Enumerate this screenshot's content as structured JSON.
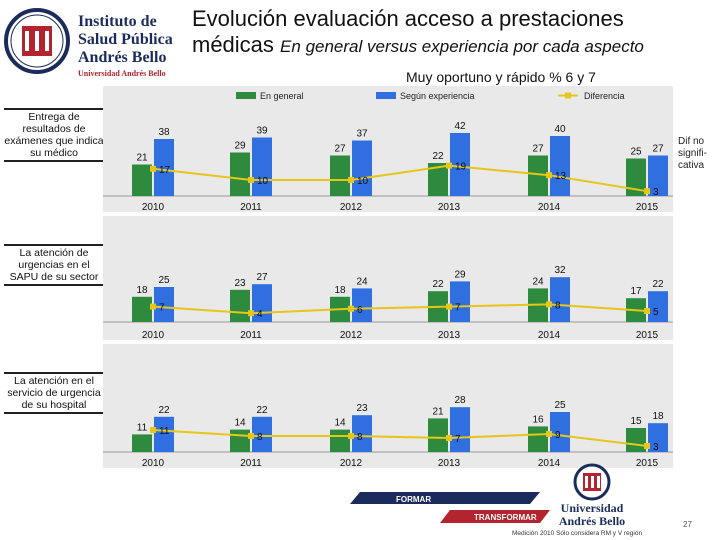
{
  "header": {
    "title_line1": "Evolución evaluación acceso a prestaciones",
    "title_line2_main": "médicas ",
    "title_line2_sub": "En general versus experiencia por cada aspecto",
    "subtitle": "Muy oportuno y rápido % 6 y 7"
  },
  "logo": {
    "line1": "Instituto de",
    "line2": "Salud Pública",
    "line3": "Andrés Bello",
    "line4": "Universidad Andrés Bello"
  },
  "legend": {
    "general": "En general",
    "experiencia": "Según experiencia",
    "diferencia": "Diferencia"
  },
  "colors": {
    "general": "#2e8b3e",
    "experiencia": "#2f6fe0",
    "diferencia": "#e6c619",
    "panel_bg": "#e9e9e9"
  },
  "dif_note": [
    "Dif no",
    "signifi-",
    "cativa"
  ],
  "chart_data": [
    {
      "type": "bar",
      "label": "Entrega de resultados de exámenes que indica su médico",
      "categories": [
        "2010",
        "2011",
        "2012",
        "2013",
        "2014",
        "2015"
      ],
      "series": [
        {
          "name": "En general",
          "values": [
            21,
            29,
            27,
            22,
            27,
            25
          ]
        },
        {
          "name": "Según experiencia",
          "values": [
            38,
            39,
            37,
            42,
            40,
            27
          ]
        }
      ],
      "difference": {
        "name": "Diferencia",
        "values": [
          17,
          10,
          10,
          19,
          13,
          3
        ]
      }
    },
    {
      "type": "bar",
      "label": "La atención de urgencias en el SAPU de su sector",
      "categories": [
        "2010",
        "2011",
        "2012",
        "2013",
        "2014",
        "2015"
      ],
      "series": [
        {
          "name": "En general",
          "values": [
            18,
            23,
            18,
            22,
            24,
            17
          ]
        },
        {
          "name": "Según experiencia",
          "values": [
            25,
            27,
            24,
            29,
            32,
            22
          ]
        }
      ],
      "difference": {
        "name": "Diferencia",
        "values": [
          7,
          4,
          6,
          7,
          8,
          5
        ]
      }
    },
    {
      "type": "bar",
      "label": "La atención en el servicio de urgencia de su hospital",
      "categories": [
        "2010",
        "2011",
        "2012",
        "2013",
        "2014",
        "2015"
      ],
      "series": [
        {
          "name": "En general",
          "values": [
            11,
            14,
            14,
            21,
            16,
            15
          ]
        },
        {
          "name": "Según experiencia",
          "values": [
            22,
            22,
            23,
            28,
            25,
            18
          ]
        }
      ],
      "difference": {
        "name": "Diferencia",
        "values": [
          11,
          8,
          8,
          7,
          9,
          3
        ]
      }
    }
  ],
  "footer": {
    "banner_top": "FORMAR",
    "banner_bottom": "TRANSFORMAR",
    "univ_line1": "Universidad",
    "univ_line2": "Andrés Bello",
    "note": "Medición 2010 Sólo considera RM y V región",
    "page": "27"
  }
}
